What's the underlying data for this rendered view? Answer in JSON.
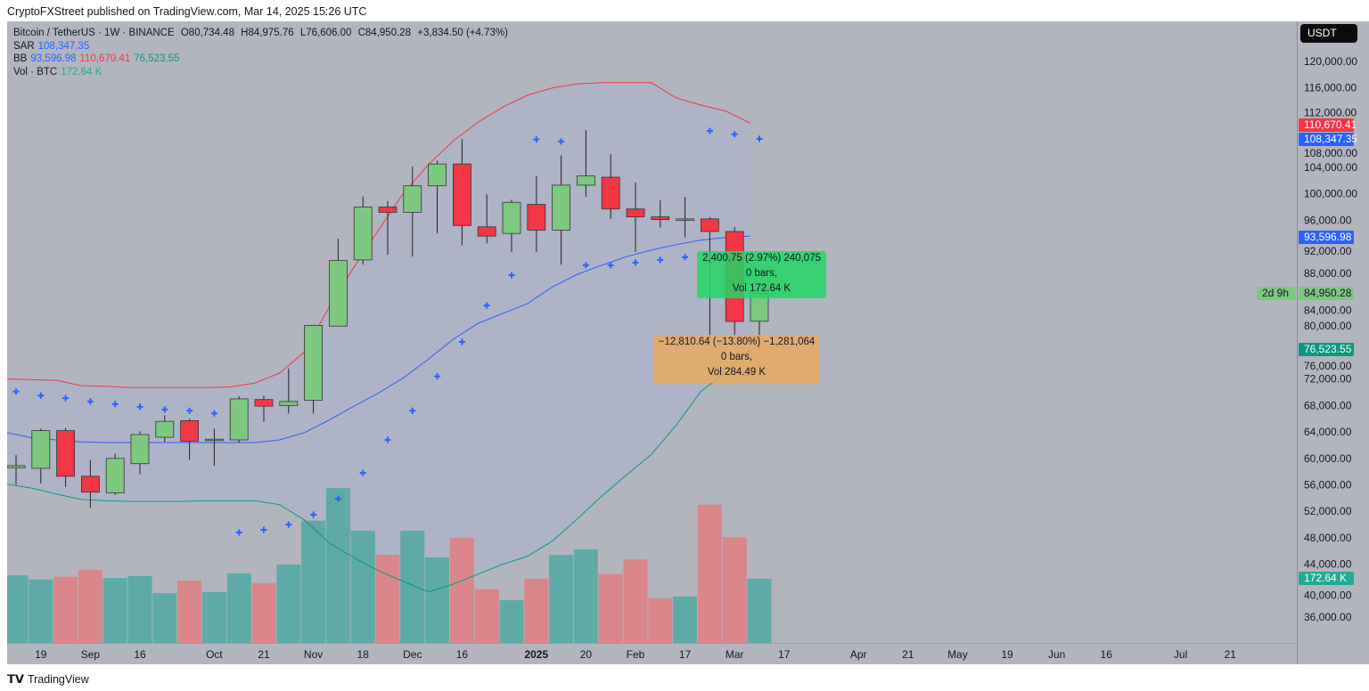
{
  "header": {
    "published": "CryptoFXStreet published on TradingView.com, Mar 14, 2025 15:26 UTC"
  },
  "legend": {
    "symbol": "Bitcoin / TetherUS · 1W · BINANCE",
    "open": "O80,734.48",
    "high": "H84,975.76",
    "low": "L76,606.00",
    "close": "C84,950.28",
    "change": "+3,834.50 (+4.73%)",
    "sar_label": "SAR",
    "sar_value": "108,347.35",
    "bb_label": "BB",
    "bb_mid": "93,596.98",
    "bb_upper": "110,670.41",
    "bb_lower": "76,523.55",
    "vol_label": "Vol · BTC",
    "vol_value": "172.64 K"
  },
  "price_axis": {
    "currency": "USDT",
    "ticks": [
      "120,000.00",
      "116,000.00",
      "112,000.00",
      "108,000.00",
      "104,000.00",
      "100,000.00",
      "96,000.00",
      "92,000.00",
      "88,000.00",
      "84,000.00",
      "80,000.00",
      "76,000.00",
      "72,000.00",
      "68,000.00",
      "64,000.00",
      "60,000.00",
      "56,000.00",
      "52,000.00",
      "48,000.00",
      "44,000.00",
      "40,000.00",
      "36,000.00"
    ],
    "tags": {
      "bb_upper": "110,670.41",
      "sar": "108,347.35",
      "bb_mid": "93,596.98",
      "last": "84,950.28",
      "countdown": "2d 9h",
      "bb_lower": "76,523.55",
      "volume": "172.64 K"
    }
  },
  "time_axis": {
    "labels": [
      "19",
      "Sep",
      "16",
      "Oct",
      "21",
      "Nov",
      "18",
      "Dec",
      "16",
      "2025",
      "20",
      "Feb",
      "17",
      "Mar",
      "17",
      "Apr",
      "21",
      "May",
      "19",
      "Jun",
      "16",
      "Jul",
      "21"
    ],
    "label_weeks": [
      1,
      3,
      5,
      8,
      10,
      12,
      14,
      16,
      18,
      21,
      23,
      25,
      27,
      29,
      31,
      34,
      36,
      38,
      40,
      42,
      44,
      47,
      49
    ]
  },
  "measure": {
    "up": {
      "line1": "2,400.75 (2.97%) 240,075",
      "line2": "0 bars,",
      "line3": "Vol 172.64 K"
    },
    "down": {
      "line1": "−12,810.64 (−13.80%) −1,281,064",
      "line2": "0 bars,",
      "line3": "Vol 284.49 K"
    }
  },
  "colors": {
    "up": "#7dc87f",
    "down": "#f23645",
    "vol_up": "#5eaaa7",
    "vol_down": "#d9858a",
    "sar": "#2962ff",
    "bb_upper": "#f23645",
    "bb_mid": "#2962ff",
    "bb_lower": "#089981",
    "bb_fill": "#acb3c7"
  },
  "chart_data": {
    "type": "candlestick",
    "interval": "1W",
    "first_week": "2024-08-12",
    "ylim": [
      32000,
      123000
    ],
    "ohlc": [
      [
        58.6,
        60.5,
        56.0,
        58.9
      ],
      [
        58.5,
        64.5,
        56.2,
        64.2
      ],
      [
        64.2,
        64.6,
        55.7,
        57.3
      ],
      [
        57.3,
        59.8,
        52.5,
        54.9
      ],
      [
        54.8,
        60.7,
        54.5,
        60.0
      ],
      [
        59.2,
        64.1,
        57.6,
        63.6
      ],
      [
        63.2,
        66.5,
        62.5,
        65.6
      ],
      [
        65.7,
        66.0,
        59.8,
        62.6
      ],
      [
        62.8,
        64.5,
        58.9,
        62.9
      ],
      [
        62.8,
        69.4,
        62.4,
        69.0
      ],
      [
        68.9,
        69.5,
        65.5,
        67.9
      ],
      [
        68.0,
        73.6,
        66.8,
        68.6
      ],
      [
        68.8,
        80.2,
        66.8,
        80.1
      ],
      [
        80.0,
        93.2,
        80.0,
        89.9
      ],
      [
        90.0,
        99.6,
        89.3,
        98.0
      ],
      [
        98.0,
        98.9,
        90.8,
        97.2
      ],
      [
        97.2,
        104.1,
        90.5,
        101.2
      ],
      [
        101.2,
        105.0,
        94.0,
        104.5
      ],
      [
        104.5,
        108.3,
        92.2,
        95.2
      ],
      [
        95.0,
        99.9,
        92.5,
        93.6
      ],
      [
        94.0,
        99.1,
        91.2,
        98.7
      ],
      [
        98.4,
        102.7,
        91.2,
        94.5
      ],
      [
        94.5,
        105.8,
        89.3,
        101.3
      ],
      [
        101.3,
        109.6,
        99.5,
        102.7
      ],
      [
        102.5,
        106.0,
        96.2,
        97.7
      ],
      [
        97.7,
        101.7,
        91.2,
        96.5
      ],
      [
        96.5,
        99.0,
        94.9,
        96.1
      ],
      [
        96.1,
        99.5,
        93.4,
        96.2
      ],
      [
        96.2,
        96.5,
        78.2,
        94.3
      ],
      [
        94.3,
        95.0,
        78.0,
        80.7
      ],
      [
        80.73,
        84.98,
        76.61,
        84.95
      ]
    ],
    "volume_k": [
      182,
      171,
      178,
      197,
      175,
      180,
      134,
      168,
      137,
      187,
      161,
      211,
      329,
      417,
      302,
      237,
      302,
      230,
      283,
      144,
      115,
      173,
      237,
      252,
      185,
      225,
      120,
      125,
      372,
      285,
      172.64
    ],
    "sar": [
      70.1,
      69.5,
      69.1,
      68.6,
      68.2,
      67.8,
      67.4,
      67.2,
      66.8,
      48.8,
      49.2,
      50.0,
      51.5,
      53.9,
      57.8,
      62.8,
      67.2,
      72.4,
      77.6,
      83.1,
      87.7,
      108.2,
      107.9,
      89.2,
      89.2,
      89.6,
      90.0,
      90.4,
      109.5,
      109.0,
      108.3
    ],
    "bb_upper": [
      72.0,
      71.9,
      71.8,
      71.0,
      70.9,
      70.7,
      70.7,
      70.7,
      70.7,
      70.8,
      71.4,
      72.9,
      76.1,
      82.9,
      88.9,
      94.6,
      100.1,
      104.4,
      108.0,
      110.8,
      113.1,
      114.9,
      116.0,
      116.6,
      116.8,
      116.8,
      116.8,
      114.5,
      113.4,
      112.5,
      110.67
    ],
    "bb_mid": [
      63.9,
      63.1,
      62.8,
      62.5,
      62.4,
      62.4,
      62.4,
      62.4,
      62.4,
      62.4,
      62.4,
      62.8,
      63.9,
      65.8,
      67.9,
      69.9,
      72.2,
      75.0,
      78.0,
      80.4,
      81.9,
      83.4,
      85.9,
      87.8,
      89.2,
      90.5,
      91.5,
      92.3,
      93.0,
      93.4,
      93.6
    ],
    "bb_lower": [
      56.1,
      55.5,
      54.6,
      53.8,
      53.6,
      53.5,
      53.5,
      53.5,
      53.6,
      53.6,
      53.6,
      53.0,
      50.7,
      47.2,
      45.0,
      43.0,
      41.4,
      39.8,
      41.0,
      42.5,
      44.0,
      45.2,
      47.5,
      50.8,
      54.3,
      57.5,
      60.6,
      65.0,
      70.1,
      73.0,
      76.52
    ],
    "units": "thousand USDT"
  }
}
